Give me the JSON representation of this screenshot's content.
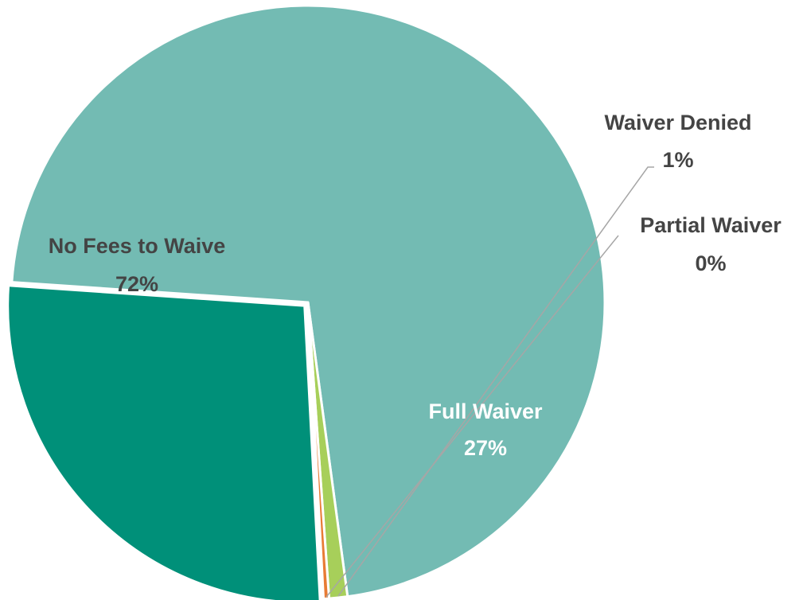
{
  "chart_data": {
    "type": "pie",
    "title": "",
    "slices": [
      {
        "label": "Full Waiver",
        "value": 27,
        "percent_label": "27%",
        "color": "#009079",
        "label_color": "#ffffff",
        "exploded": true
      },
      {
        "label": "No Fees to Waive",
        "value": 72,
        "percent_label": "72%",
        "color": "#73bbb3",
        "label_color": "#444444",
        "exploded": false
      },
      {
        "label": "Waiver Denied",
        "value": 1,
        "percent_label": "1%",
        "color": "#a7cf5a",
        "label_color": "#444444",
        "exploded": false
      },
      {
        "label": "Partial Waiver",
        "value": 0.3,
        "percent_label": "0%",
        "color": "#e87b35",
        "label_color": "#444444",
        "exploded": false
      }
    ],
    "start_angle_deg": 87,
    "direction": "clockwise",
    "legend": "none",
    "data_labels": true,
    "leader_line_color": "#a6a6a6"
  }
}
